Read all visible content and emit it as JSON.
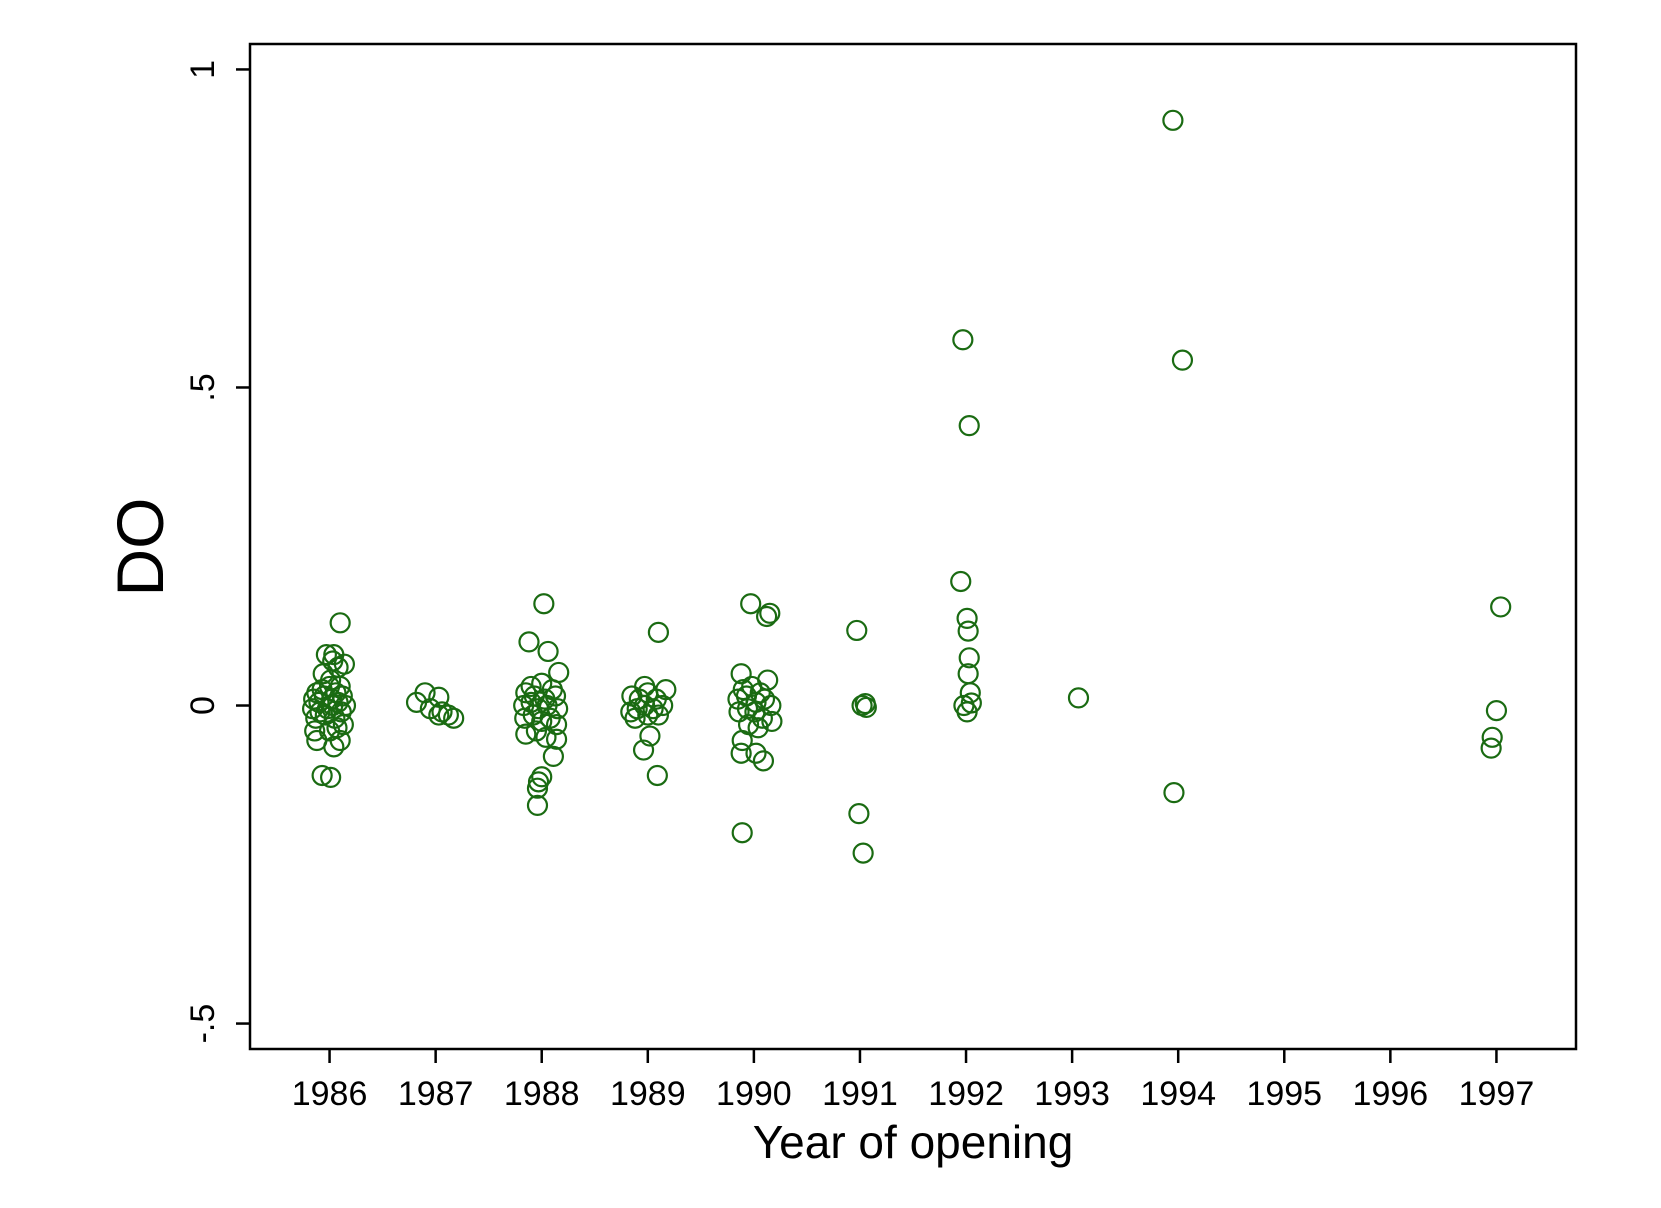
{
  "chart_data": {
    "type": "scatter",
    "xlabel": "Year of opening",
    "ylabel": "DO",
    "xlim": [
      1985.25,
      1997.75
    ],
    "ylim": [
      -0.54,
      1.04
    ],
    "x_ticks": [
      1986,
      1987,
      1988,
      1989,
      1990,
      1991,
      1992,
      1993,
      1994,
      1995,
      1996,
      1997
    ],
    "x_tick_labels": [
      "1986",
      "1987",
      "1988",
      "1989",
      "1990",
      "1991",
      "1992",
      "1993",
      "1994",
      "1995",
      "1996",
      "1997"
    ],
    "y_ticks": [
      -0.5,
      0,
      0.5,
      1
    ],
    "y_tick_labels": [
      "-.5",
      "0",
      ".5",
      "1"
    ],
    "grid": false,
    "marker": "hollow-circle",
    "colors": {
      "marker": "#1a6b12",
      "axis": "#000000",
      "background": "#ffffff"
    },
    "series": [
      {
        "points": [
          [
            1986.1,
            0.13
          ],
          [
            1985.97,
            0.08
          ],
          [
            1986.04,
            0.08
          ],
          [
            1986.03,
            0.07
          ],
          [
            1986.14,
            0.065
          ],
          [
            1986.08,
            0.06
          ],
          [
            1985.94,
            0.05
          ],
          [
            1986.01,
            0.04
          ],
          [
            1986.1,
            0.03
          ],
          [
            1985.88,
            0.02
          ],
          [
            1985.93,
            0.025
          ],
          [
            1986.0,
            0.03
          ],
          [
            1986.06,
            0.02
          ],
          [
            1986.12,
            0.015
          ],
          [
            1985.85,
            0.01
          ],
          [
            1985.9,
            0.005
          ],
          [
            1985.95,
            0.015
          ],
          [
            1986.02,
            0.01
          ],
          [
            1986.08,
            0.005
          ],
          [
            1986.15,
            0.0
          ],
          [
            1985.84,
            -0.005
          ],
          [
            1985.91,
            -0.01
          ],
          [
            1985.98,
            -0.005
          ],
          [
            1986.03,
            0.0
          ],
          [
            1986.11,
            -0.01
          ],
          [
            1985.87,
            -0.02
          ],
          [
            1985.96,
            -0.015
          ],
          [
            1986.05,
            -0.02
          ],
          [
            1986.13,
            -0.03
          ],
          [
            1985.86,
            -0.04
          ],
          [
            1986.0,
            -0.04
          ],
          [
            1986.07,
            -0.035
          ],
          [
            1985.88,
            -0.055
          ],
          [
            1986.04,
            -0.065
          ],
          [
            1986.1,
            -0.055
          ],
          [
            1985.93,
            -0.11
          ],
          [
            1986.01,
            -0.113
          ],
          [
            1986.82,
            0.005
          ],
          [
            1986.9,
            0.02
          ],
          [
            1986.95,
            -0.005
          ],
          [
            1987.03,
            0.013
          ],
          [
            1987.06,
            -0.01
          ],
          [
            1987.12,
            -0.015
          ],
          [
            1987.17,
            -0.02
          ],
          [
            1987.03,
            -0.015
          ],
          [
            1987.88,
            0.1
          ],
          [
            1988.02,
            0.16
          ],
          [
            1988.06,
            0.085
          ],
          [
            1988.16,
            0.052
          ],
          [
            1987.9,
            0.03
          ],
          [
            1988.0,
            0.035
          ],
          [
            1988.1,
            0.025
          ],
          [
            1987.85,
            0.02
          ],
          [
            1987.93,
            0.015
          ],
          [
            1988.03,
            0.01
          ],
          [
            1988.13,
            0.015
          ],
          [
            1987.83,
            0.0
          ],
          [
            1987.9,
            0.005
          ],
          [
            1987.97,
            -0.005
          ],
          [
            1988.05,
            0.0
          ],
          [
            1988.15,
            -0.005
          ],
          [
            1987.84,
            -0.02
          ],
          [
            1987.92,
            -0.015
          ],
          [
            1988.0,
            -0.025
          ],
          [
            1988.08,
            -0.02
          ],
          [
            1988.14,
            -0.03
          ],
          [
            1987.85,
            -0.045
          ],
          [
            1987.95,
            -0.04
          ],
          [
            1988.04,
            -0.05
          ],
          [
            1988.14,
            -0.053
          ],
          [
            1988.11,
            -0.08
          ],
          [
            1987.97,
            -0.12
          ],
          [
            1988.0,
            -0.112
          ],
          [
            1987.96,
            -0.13
          ],
          [
            1987.96,
            -0.157
          ],
          [
            1988.85,
            0.015
          ],
          [
            1988.97,
            0.03
          ],
          [
            1989.1,
            0.115
          ],
          [
            1989.17,
            0.025
          ],
          [
            1988.92,
            0.01
          ],
          [
            1989.0,
            0.02
          ],
          [
            1989.08,
            0.01
          ],
          [
            1988.84,
            -0.01
          ],
          [
            1988.9,
            -0.005
          ],
          [
            1988.97,
            0.0
          ],
          [
            1989.05,
            -0.005
          ],
          [
            1989.14,
            0.0
          ],
          [
            1988.88,
            -0.02
          ],
          [
            1989.0,
            -0.015
          ],
          [
            1989.1,
            -0.015
          ],
          [
            1988.96,
            -0.07
          ],
          [
            1989.02,
            -0.048
          ],
          [
            1989.09,
            -0.11
          ],
          [
            1989.88,
            0.05
          ],
          [
            1989.97,
            0.16
          ],
          [
            1990.15,
            0.145
          ],
          [
            1990.12,
            0.14
          ],
          [
            1990.13,
            0.04
          ],
          [
            1989.9,
            0.025
          ],
          [
            1989.98,
            0.03
          ],
          [
            1990.06,
            0.02
          ],
          [
            1989.85,
            0.01
          ],
          [
            1989.93,
            0.015
          ],
          [
            1990.02,
            0.005
          ],
          [
            1990.1,
            0.01
          ],
          [
            1990.16,
            0.0
          ],
          [
            1989.86,
            -0.01
          ],
          [
            1989.94,
            -0.005
          ],
          [
            1990.01,
            -0.01
          ],
          [
            1990.08,
            -0.02
          ],
          [
            1990.17,
            -0.025
          ],
          [
            1989.95,
            -0.03
          ],
          [
            1990.04,
            -0.035
          ],
          [
            1989.89,
            -0.055
          ],
          [
            1989.88,
            -0.075
          ],
          [
            1990.02,
            -0.075
          ],
          [
            1990.09,
            -0.087
          ],
          [
            1989.89,
            -0.2
          ],
          [
            1990.97,
            0.118
          ],
          [
            1991.02,
            0.0
          ],
          [
            1991.05,
            0.003
          ],
          [
            1991.06,
            -0.003
          ],
          [
            1990.99,
            -0.17
          ],
          [
            1991.03,
            -0.232
          ],
          [
            1991.97,
            0.575
          ],
          [
            1992.03,
            0.44
          ],
          [
            1991.95,
            0.195
          ],
          [
            1992.01,
            0.137
          ],
          [
            1992.02,
            0.117
          ],
          [
            1992.03,
            0.075
          ],
          [
            1992.02,
            0.05
          ],
          [
            1992.04,
            0.02
          ],
          [
            1991.98,
            0.0
          ],
          [
            1992.05,
            0.004
          ],
          [
            1992.01,
            -0.01
          ],
          [
            1993.06,
            0.012
          ],
          [
            1993.95,
            0.92
          ],
          [
            1994.04,
            0.543
          ],
          [
            1993.96,
            -0.137
          ],
          [
            1996.96,
            -0.05
          ],
          [
            1996.95,
            -0.067
          ],
          [
            1997.0,
            -0.008
          ],
          [
            1997.04,
            0.155
          ]
        ]
      }
    ]
  }
}
